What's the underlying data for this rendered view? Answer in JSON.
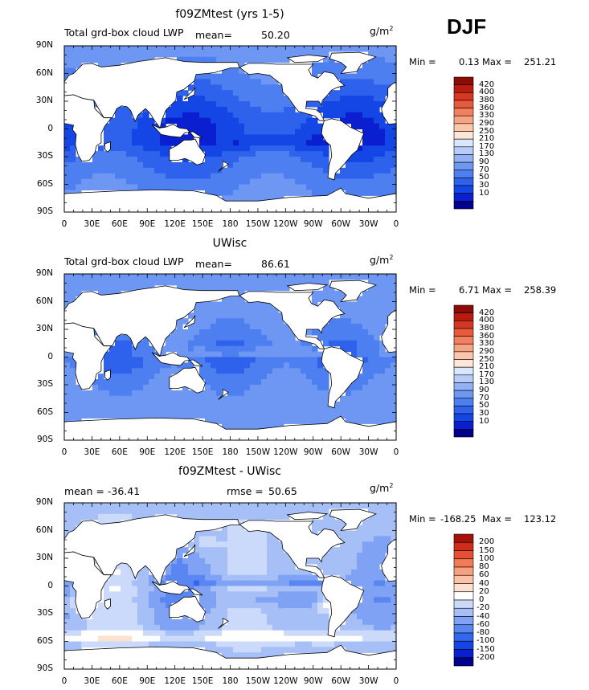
{
  "season": "DJF",
  "units_base": "g/m",
  "units_exp": "2",
  "x_ticks": [
    "0",
    "30E",
    "60E",
    "90E",
    "120E",
    "150E",
    "180",
    "150W",
    "120W",
    "90W",
    "60W",
    "30W",
    "0"
  ],
  "y_ticks": [
    "90N",
    "60N",
    "30N",
    "0",
    "30S",
    "60S",
    "90S"
  ],
  "colors": {
    "seq": [
      "#00008c",
      "#0a1fcf",
      "#1446e6",
      "#2f62ec",
      "#4d7ff0",
      "#6d97f3",
      "#93b2f6",
      "#b7cdf9",
      "#d9e6fc",
      "#ffe6d6",
      "#fcc7aa",
      "#f8a383",
      "#f27f5e",
      "#e85a3c",
      "#d63722",
      "#b81c0f",
      "#8c0b06"
    ],
    "diff": [
      "#00008c",
      "#0a1fcf",
      "#1446e6",
      "#3366ee",
      "#5a86f2",
      "#7fa2f4",
      "#a6bff7",
      "#cbd9fa",
      "#ffffff",
      "#fde0d0",
      "#fbc2a6",
      "#f79f7e",
      "#f17a57",
      "#e64f33",
      "#cf2d1a",
      "#a5120a"
    ]
  },
  "chart_data": [
    {
      "type": "heatmap",
      "title": "f09ZMtest (yrs 1-5)",
      "left_label": "Total grd-box cloud LWP",
      "mean_label": "mean=",
      "mean": "50.20",
      "min_label": "Min =",
      "min": "0.13",
      "max_label": "Max =",
      "max": "251.21",
      "levels": [
        "10",
        "30",
        "50",
        "70",
        "90",
        "130",
        "170",
        "210",
        "250",
        "290",
        "330",
        "360",
        "380",
        "400",
        "420"
      ]
    },
    {
      "type": "heatmap",
      "title": "UWisc",
      "left_label": "Total grd-box cloud LWP",
      "mean_label": "mean=",
      "mean": "86.61",
      "min_label": "Min =",
      "min": "6.71",
      "max_label": "Max =",
      "max": "258.39",
      "levels": [
        "10",
        "30",
        "50",
        "70",
        "90",
        "130",
        "170",
        "210",
        "250",
        "290",
        "330",
        "360",
        "380",
        "400",
        "420"
      ]
    },
    {
      "type": "heatmap",
      "title": "f09ZMtest - UWisc",
      "left_label": "mean = -36.41",
      "mean_label": "rmse =",
      "mean": "50.65",
      "min_label": "Min =",
      "min": "-168.25",
      "max_label": "Max =",
      "max": "123.12",
      "levels": [
        "-200",
        "-150",
        "-100",
        "-80",
        "-60",
        "-40",
        "-20",
        "0",
        "20",
        "40",
        "60",
        "80",
        "100",
        "150",
        "200"
      ]
    }
  ]
}
